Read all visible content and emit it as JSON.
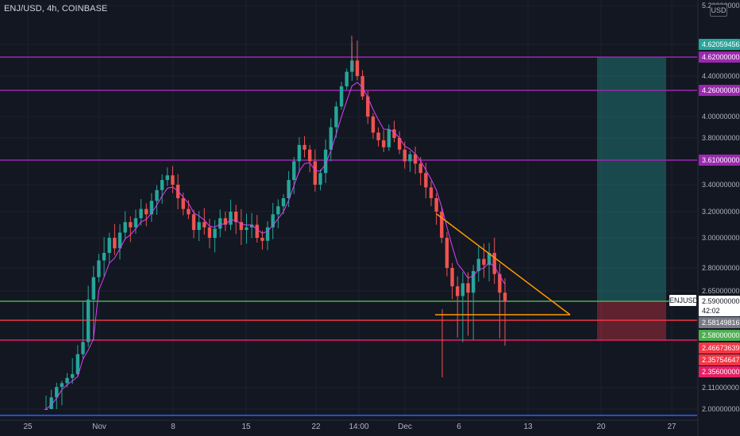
{
  "header": {
    "title": "ENJ/USD, 4h, COINBASE",
    "currency_button": "USD"
  },
  "chart_data": {
    "type": "candlestick",
    "title": "ENJ/USD, 4h, COINBASE",
    "symbol": "ENJUSD",
    "timeframe": "4h",
    "exchange": "COINBASE",
    "currency": "USD",
    "ylim": [
      1.95,
      5.2
    ],
    "x_tick_labels": [
      "25",
      "Nov",
      "8",
      "15",
      "22",
      "14:00",
      "Dec",
      "6",
      "13",
      "20",
      "27"
    ],
    "y_tick_labels": [
      "5.20000000",
      "4.62059456",
      "4.62000000",
      "4.40000000",
      "4.26000000",
      "4.00000000",
      "3.80000000",
      "3.61000000",
      "3.40000000",
      "3.20000000",
      "3.00000000",
      "2.80000000",
      "2.65000000",
      "2.59000000",
      "2.58149816",
      "2.58000000",
      "2.46673639",
      "2.35754647",
      "2.35600000",
      "2.11000000",
      "2.00000000"
    ],
    "horizontal_levels": [
      {
        "value": 4.62,
        "label": "4.62000000",
        "color": "#9c27b0"
      },
      {
        "value": 4.26,
        "label": "4.26000000",
        "color": "#9c27b0"
      },
      {
        "value": 3.61,
        "label": "3.61000000",
        "color": "#9c27b0"
      },
      {
        "value": 2.58,
        "label": "2.58000000",
        "color": "#4caf50"
      },
      {
        "value": 2.46673639,
        "label": "2.46673639",
        "color": "#f23645"
      },
      {
        "value": 2.356,
        "label": "2.35600000",
        "color": "#e91e63"
      }
    ],
    "price_labels": [
      {
        "value": 4.62059456,
        "label": "4.62059456",
        "color": "#26a69a"
      },
      {
        "value": 2.59,
        "label": "2.59000000",
        "color": "#ffffff",
        "sublabel": "42:02"
      },
      {
        "value": 2.58149816,
        "label": "2.58149816",
        "color": "#787b86"
      },
      {
        "value": 2.35754647,
        "label": "2.35754647",
        "color": "#f23645"
      }
    ],
    "position": {
      "entry": 2.58,
      "target": 4.62,
      "stop": 2.356
    },
    "triangle": {
      "upper_start": 3.18,
      "apex": 2.4,
      "lower": 2.4
    },
    "series": [
      {
        "name": "close",
        "values": [
          2.0,
          2.06,
          2.12,
          2.18,
          2.26,
          2.32,
          2.41,
          2.52,
          2.6,
          2.74,
          2.85,
          2.9,
          3.0,
          2.93,
          3.04,
          3.12,
          3.08,
          3.15,
          3.22,
          3.18,
          3.28,
          3.36,
          3.44,
          3.48,
          3.4,
          3.3,
          3.22,
          3.18,
          3.06,
          3.12,
          3.08,
          3.0,
          3.07,
          3.15,
          3.1,
          3.2,
          3.12,
          3.06,
          3.08,
          3.1,
          3.0,
          2.98,
          3.08,
          3.18,
          3.24,
          3.3,
          3.44,
          3.6,
          3.74,
          3.7,
          3.6,
          3.4,
          3.5,
          3.7,
          3.9,
          4.1,
          4.3,
          4.45,
          4.58,
          4.4,
          4.2,
          4.0,
          3.85,
          3.78,
          3.72,
          3.88,
          3.8,
          3.7,
          3.6,
          3.66,
          3.58,
          3.5,
          3.38,
          3.3,
          3.2,
          3.0,
          2.8,
          2.68,
          2.62,
          2.7,
          2.64,
          2.78,
          2.86,
          2.82,
          2.9,
          2.76,
          2.64,
          2.59
        ]
      }
    ]
  },
  "tags": {
    "ticker": "ENJUSD",
    "countdown": "42:02"
  }
}
